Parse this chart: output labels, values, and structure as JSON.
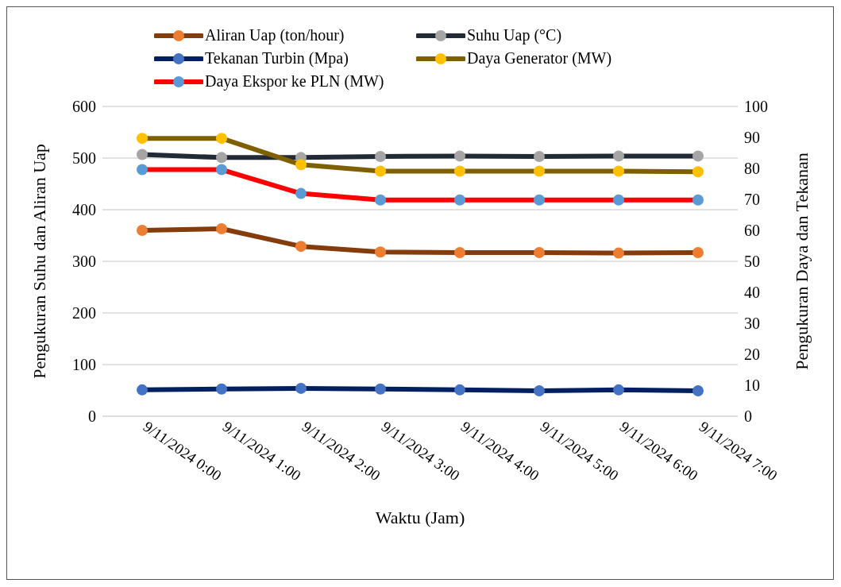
{
  "chart_data": {
    "type": "line",
    "xlabel": "Waktu (Jam)",
    "ylabel": "Pengukuran Suhu dan Aliran Uap",
    "y2label": "Pengukuran Daya dan Tekanan",
    "categories": [
      "9/11/2024 0:00",
      "9/11/2024 1:00",
      "9/11/2024 2:00",
      "9/11/2024 3:00",
      "9/11/2024 4:00",
      "9/11/2024 5:00",
      "9/11/2024 6:00",
      "9/11/2024 7:00"
    ],
    "series": [
      {
        "name": "Aliran Uap (ton/hour)",
        "color": "#843c0c",
        "colors": [
          "#ed7d31",
          "#ed7d31",
          "#ed7d31",
          "#ed7d31",
          "#ed7d31",
          "#ed7d31",
          "#ed7d31",
          "#ed7d31"
        ],
        "values": [
          360,
          363,
          329,
          318,
          317,
          317,
          316,
          317
        ]
      },
      {
        "name": "Suhu Uap (°C)",
        "color": "#222a35",
        "colors": [
          "#a5a5a5",
          "#a5a5a5",
          "#a5a5a5",
          "#a5a5a5",
          "#a5a5a5",
          "#a5a5a5",
          "#a5a5a5",
          "#a5a5a5"
        ],
        "values": [
          507,
          501,
          501,
          503,
          504,
          503,
          504,
          504
        ]
      },
      {
        "name": "Tekanan Turbin (Mpa)",
        "color": "#002060",
        "axis": "y2",
        "colors": [
          "#4472c4",
          "#4472c4",
          "#4472c4",
          "#4472c4",
          "#4472c4",
          "#4472c4",
          "#4472c4",
          "#4472c4"
        ],
        "values": [
          8.5,
          8.8,
          9.0,
          8.8,
          8.5,
          8.2,
          8.5,
          8.2
        ]
      },
      {
        "name": "Daya Generator (MW)",
        "color": "#7f6000",
        "axis": "y2",
        "colors": [
          "#ffc000",
          "#ffc000",
          "#ffc000",
          "#ffc000",
          "#ffc000",
          "#ffc000",
          "#ffc000",
          "#ffc000"
        ],
        "values": [
          89.7,
          89.7,
          81.2,
          79.1,
          79.1,
          79.1,
          79.1,
          78.9
        ]
      },
      {
        "name": "Daya Ekspor ke PLN (MW)",
        "color": "#ff0000",
        "axis": "y2",
        "colors": [
          "#5b9bd5",
          "#5b9bd5",
          "#5b9bd5",
          "#5b9bd5",
          "#5b9bd5",
          "#5b9bd5",
          "#5b9bd5",
          "#5b9bd5"
        ],
        "values": [
          79.6,
          79.6,
          71.9,
          69.8,
          69.8,
          69.8,
          69.8,
          69.8
        ]
      }
    ],
    "ylim": [
      0,
      600
    ],
    "yticks": [
      0,
      100,
      200,
      300,
      400,
      500,
      600
    ],
    "y2lim": [
      0,
      100
    ],
    "y2ticks": [
      0,
      10,
      20,
      30,
      40,
      50,
      60,
      70,
      80,
      90,
      100
    ],
    "grid": "y",
    "legend": "top",
    "marker": "circle",
    "line_style": "solid"
  }
}
